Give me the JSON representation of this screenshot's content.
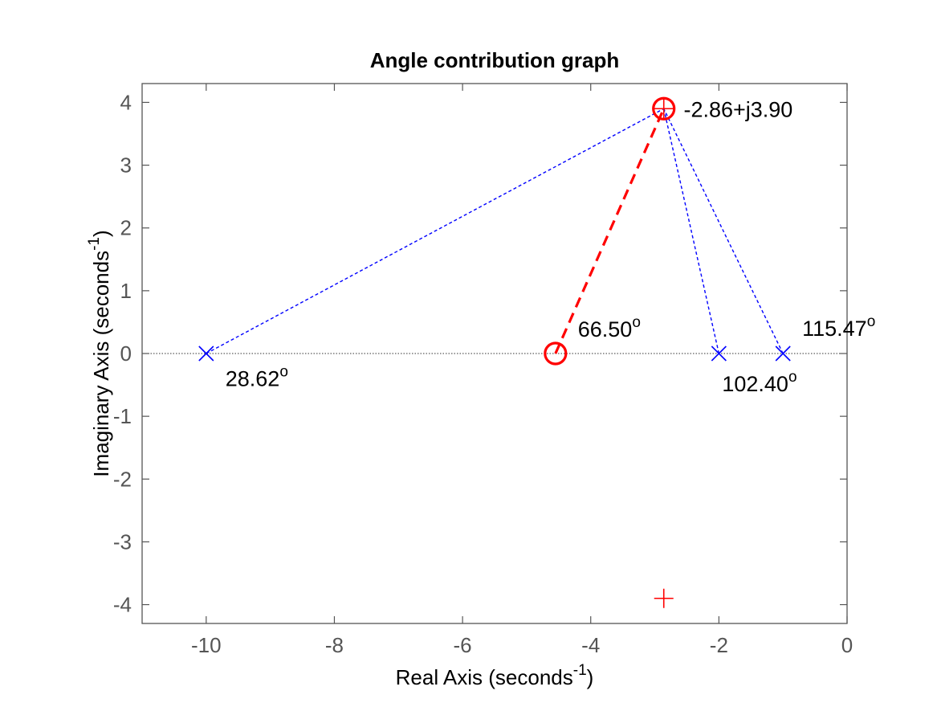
{
  "chart_data": {
    "type": "scatter",
    "title": "Angle contribution graph",
    "xlabel": {
      "text": "Real Axis (seconds",
      "sup": "-1",
      "end": ")"
    },
    "ylabel": {
      "text": "Imaginary Axis (seconds",
      "sup": "-1",
      "end": ")"
    },
    "xlim": [
      -11,
      0
    ],
    "ylim": [
      -4.3,
      4.3
    ],
    "xticks": [
      -10,
      -8,
      -6,
      -4,
      -2,
      0
    ],
    "yticks": [
      -4,
      -3,
      -2,
      -1,
      0,
      1,
      2,
      3,
      4
    ],
    "grid": false,
    "poles": [
      {
        "x": -10,
        "y": 0
      },
      {
        "x": -2,
        "y": 0
      },
      {
        "x": -1,
        "y": 0
      }
    ],
    "zeros": [
      {
        "x": -4.55,
        "y": 0
      }
    ],
    "test_point": {
      "x": -2.86,
      "y": 3.9
    },
    "conjugate_point": {
      "x": -2.86,
      "y": -3.9
    },
    "angle_labels": [
      {
        "text": "28.62",
        "sup": "o",
        "x": -9.7,
        "y": -0.52
      },
      {
        "text": "66.50",
        "sup": "o",
        "x": -4.2,
        "y": 0.27
      },
      {
        "text": "102.40",
        "sup": "o",
        "x": -1.95,
        "y": -0.6
      },
      {
        "text": "115.47",
        "sup": "o",
        "x": -0.7,
        "y": 0.28
      }
    ],
    "point_label": {
      "text": "-2.86+j3.90",
      "x": -2.55,
      "y": 3.9
    },
    "colors": {
      "pole": "#0000ff",
      "zero": "#ff0000",
      "axis_box": "#555555",
      "real_axis_line": "#333333"
    }
  }
}
